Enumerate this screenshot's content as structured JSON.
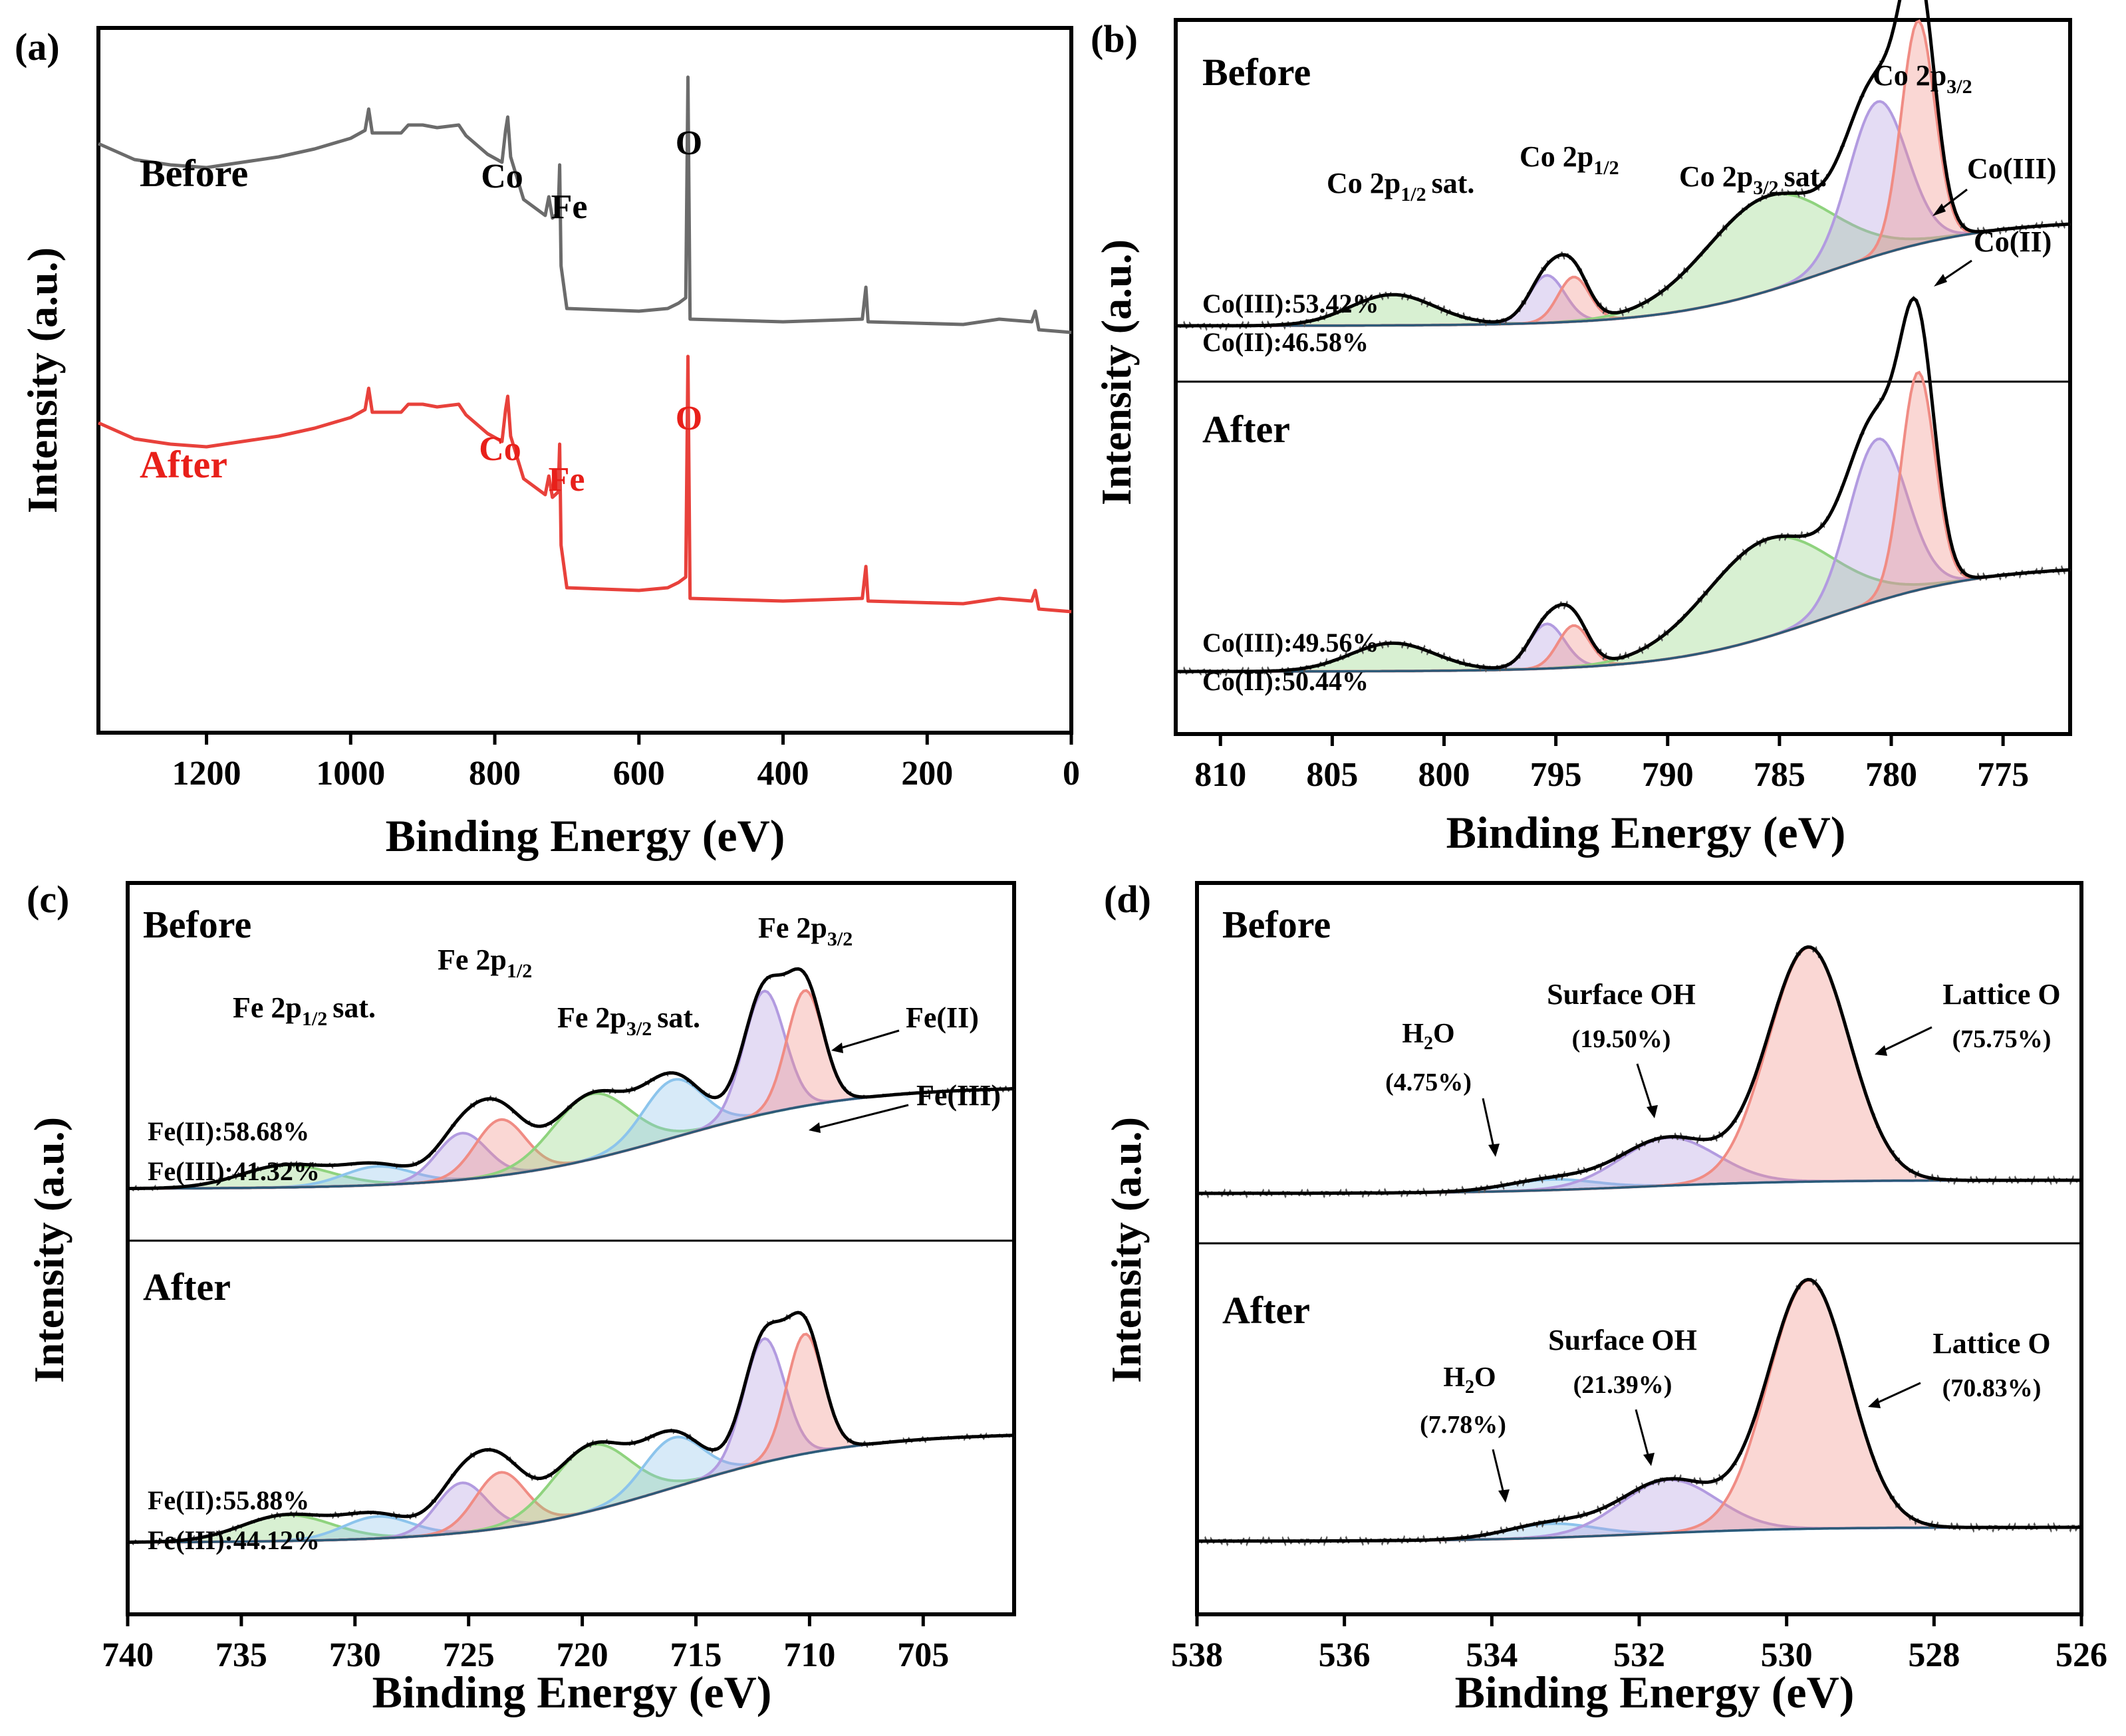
{
  "chart_data": [
    {
      "panel": "(a)",
      "type": "line",
      "xlabel": "Binding Energy (eV)",
      "ylabel": "Intensity (a.u.)",
      "xlim": [
        1350,
        0
      ],
      "xticks": [
        "1200",
        "1000",
        "800",
        "600",
        "400",
        "200",
        "0"
      ],
      "series": [
        {
          "name": "Before",
          "color": "#6b6b6b",
          "points": [
            [
              1350,
              0.42
            ],
            [
              1300,
              0.3
            ],
            [
              1250,
              0.26
            ],
            [
              1200,
              0.24
            ],
            [
              1100,
              0.32
            ],
            [
              1050,
              0.38
            ],
            [
              1000,
              0.46
            ],
            [
              980,
              0.52
            ],
            [
              975,
              0.68
            ],
            [
              970,
              0.5
            ],
            [
              930,
              0.5
            ],
            [
              920,
              0.56
            ],
            [
              900,
              0.56
            ],
            [
              880,
              0.54
            ],
            [
              850,
              0.56
            ],
            [
              840,
              0.48
            ],
            [
              810,
              0.34
            ],
            [
              790,
              0.28
            ],
            [
              785,
              0.52
            ],
            [
              782,
              0.62
            ],
            [
              778,
              0.32
            ],
            [
              760,
              0.0
            ],
            [
              730,
              -0.12
            ],
            [
              725,
              0.02
            ],
            [
              720,
              -0.14
            ],
            [
              712,
              -0.1
            ],
            [
              710,
              0.26
            ],
            [
              708,
              -0.5
            ],
            [
              700,
              -0.82
            ],
            [
              600,
              -0.84
            ],
            [
              560,
              -0.82
            ],
            [
              545,
              -0.78
            ],
            [
              535,
              -0.74
            ],
            [
              532,
              0.92
            ],
            [
              529,
              -0.9
            ],
            [
              400,
              -0.92
            ],
            [
              290,
              -0.9
            ],
            [
              285,
              -0.66
            ],
            [
              282,
              -0.92
            ],
            [
              150,
              -0.94
            ],
            [
              100,
              -0.9
            ],
            [
              55,
              -0.92
            ],
            [
              50,
              -0.84
            ],
            [
              45,
              -0.98
            ],
            [
              0,
              -1.0
            ]
          ],
          "peak_labels": [
            {
              "label": "Co",
              "x": 780
            },
            {
              "label": "Fe",
              "x": 710
            },
            {
              "label": "O",
              "x": 531
            }
          ]
        },
        {
          "name": "After",
          "color": "#e8413b",
          "points": [
            [
              1350,
              0.42
            ],
            [
              1300,
              0.3
            ],
            [
              1250,
              0.26
            ],
            [
              1200,
              0.24
            ],
            [
              1100,
              0.32
            ],
            [
              1050,
              0.38
            ],
            [
              1000,
              0.46
            ],
            [
              980,
              0.52
            ],
            [
              975,
              0.68
            ],
            [
              970,
              0.5
            ],
            [
              930,
              0.5
            ],
            [
              920,
              0.56
            ],
            [
              900,
              0.56
            ],
            [
              880,
              0.54
            ],
            [
              850,
              0.56
            ],
            [
              840,
              0.48
            ],
            [
              810,
              0.34
            ],
            [
              790,
              0.28
            ],
            [
              785,
              0.52
            ],
            [
              782,
              0.62
            ],
            [
              778,
              0.32
            ],
            [
              760,
              0.0
            ],
            [
              730,
              -0.12
            ],
            [
              725,
              0.02
            ],
            [
              720,
              -0.14
            ],
            [
              712,
              -0.1
            ],
            [
              710,
              0.26
            ],
            [
              708,
              -0.5
            ],
            [
              700,
              -0.82
            ],
            [
              600,
              -0.84
            ],
            [
              560,
              -0.82
            ],
            [
              545,
              -0.78
            ],
            [
              535,
              -0.74
            ],
            [
              532,
              0.92
            ],
            [
              529,
              -0.9
            ],
            [
              400,
              -0.92
            ],
            [
              290,
              -0.9
            ],
            [
              285,
              -0.66
            ],
            [
              282,
              -0.92
            ],
            [
              150,
              -0.94
            ],
            [
              100,
              -0.9
            ],
            [
              55,
              -0.92
            ],
            [
              50,
              -0.84
            ],
            [
              45,
              -0.98
            ],
            [
              0,
              -1.0
            ]
          ],
          "peak_labels": [
            {
              "label": "Co",
              "x": 780
            },
            {
              "label": "Fe",
              "x": 710
            },
            {
              "label": "O",
              "x": 531
            }
          ]
        }
      ]
    },
    {
      "panel": "(b)",
      "type": "line",
      "subtype": "xps-deconvolution",
      "xlabel": "Binding Energy (eV)",
      "ylabel": "Intensity (a.u.)",
      "xlim": [
        812,
        772
      ],
      "xticks": [
        "810",
        "805",
        "800",
        "795",
        "790",
        "785",
        "780",
        "775"
      ],
      "subpanels": [
        {
          "name": "Before",
          "composition": [
            "Co(III):53.42%",
            "Co(II):46.58%"
          ],
          "background": [
            0.0,
            0.38
          ],
          "peaks": [
            {
              "center": 802.3,
              "height": 0.11,
              "width": 1.9,
              "color": "#8fd37e"
            },
            {
              "center": 795.4,
              "height": 0.17,
              "width": 0.8,
              "color": "#b29be0"
            },
            {
              "center": 794.2,
              "height": 0.16,
              "width": 0.7,
              "color": "#f08c84"
            },
            {
              "center": 785.5,
              "height": 0.34,
              "width": 2.8,
              "color": "#8fd37e"
            },
            {
              "center": 780.6,
              "height": 0.55,
              "width": 1.3,
              "color": "#b29be0"
            },
            {
              "center": 778.8,
              "height": 0.8,
              "width": 0.75,
              "color": "#f08c84"
            }
          ],
          "annotations": [
            "Co 2p1/2 sat.",
            "Co 2p1/2",
            "Co 2p3/2 sat.",
            "Co 2p3/2",
            "Co(III)",
            "Co(II)"
          ]
        },
        {
          "name": "After",
          "composition": [
            "Co(III):49.56%",
            "Co(II):50.44%"
          ],
          "background": [
            0.0,
            0.38
          ],
          "peaks": [
            {
              "center": 802.3,
              "height": 0.1,
              "width": 1.9,
              "color": "#8fd37e"
            },
            {
              "center": 795.4,
              "height": 0.16,
              "width": 0.8,
              "color": "#b29be0"
            },
            {
              "center": 794.2,
              "height": 0.15,
              "width": 0.7,
              "color": "#f08c84"
            },
            {
              "center": 785.5,
              "height": 0.35,
              "width": 2.8,
              "color": "#8fd37e"
            },
            {
              "center": 780.6,
              "height": 0.58,
              "width": 1.3,
              "color": "#b29be0"
            },
            {
              "center": 778.8,
              "height": 0.78,
              "width": 0.75,
              "color": "#f08c84"
            }
          ],
          "annotations": []
        }
      ]
    },
    {
      "panel": "(c)",
      "type": "line",
      "subtype": "xps-deconvolution",
      "xlabel": "Binding Energy (eV)",
      "ylabel": "Intensity (a.u.)",
      "xlim": [
        740,
        701
      ],
      "xticks": [
        "740",
        "735",
        "730",
        "725",
        "720",
        "715",
        "710",
        "705"
      ],
      "subpanels": [
        {
          "name": "Before",
          "composition": [
            "Fe(II):58.68%",
            "Fe(III):41.32%"
          ],
          "background": [
            0.0,
            0.55
          ],
          "peaks": [
            {
              "center": 733.0,
              "height": 0.12,
              "width": 2.0,
              "color": "#8fd37e"
            },
            {
              "center": 729.0,
              "height": 0.1,
              "width": 1.5,
              "color": "#8cc4ec"
            },
            {
              "center": 725.3,
              "height": 0.25,
              "width": 1.1,
              "color": "#b29be0"
            },
            {
              "center": 723.6,
              "height": 0.3,
              "width": 1.1,
              "color": "#f08c84"
            },
            {
              "center": 719.6,
              "height": 0.35,
              "width": 1.7,
              "color": "#8fd37e"
            },
            {
              "center": 716.0,
              "height": 0.31,
              "width": 1.3,
              "color": "#8cc4ec"
            },
            {
              "center": 712.0,
              "height": 0.66,
              "width": 0.9,
              "color": "#b29be0"
            },
            {
              "center": 710.2,
              "height": 0.62,
              "width": 0.8,
              "color": "#f08c84"
            }
          ],
          "annotations": [
            "Fe 2p1/2 sat.",
            "Fe 2p1/2",
            "Fe 2p3/2 sat.",
            "Fe 2p3/2",
            "Fe(II)",
            "Fe(III)"
          ]
        },
        {
          "name": "After",
          "composition": [
            "Fe(II):55.88%",
            "Fe(III):44.12%"
          ],
          "background": [
            0.0,
            0.55
          ],
          "peaks": [
            {
              "center": 733.0,
              "height": 0.13,
              "width": 2.0,
              "color": "#8fd37e"
            },
            {
              "center": 729.0,
              "height": 0.11,
              "width": 1.5,
              "color": "#8cc4ec"
            },
            {
              "center": 725.3,
              "height": 0.25,
              "width": 1.1,
              "color": "#b29be0"
            },
            {
              "center": 723.6,
              "height": 0.28,
              "width": 1.1,
              "color": "#f08c84"
            },
            {
              "center": 719.6,
              "height": 0.33,
              "width": 1.7,
              "color": "#8fd37e"
            },
            {
              "center": 716.0,
              "height": 0.25,
              "width": 1.3,
              "color": "#8cc4ec"
            },
            {
              "center": 712.0,
              "height": 0.62,
              "width": 0.9,
              "color": "#b29be0"
            },
            {
              "center": 710.2,
              "height": 0.6,
              "width": 0.8,
              "color": "#f08c84"
            }
          ],
          "annotations": []
        }
      ]
    },
    {
      "panel": "(d)",
      "type": "line",
      "subtype": "xps-deconvolution",
      "xlabel": "Binding Energy (eV)",
      "ylabel": "Intensity (a.u.)",
      "xlim": [
        538,
        526
      ],
      "xticks": [
        "538",
        "536",
        "534",
        "532",
        "530",
        "528",
        "526"
      ],
      "subpanels": [
        {
          "name": "Before",
          "composition": [],
          "background": [
            0.0,
            0.05
          ],
          "peaks": [
            {
              "center": 533.2,
              "height": 0.04,
              "width": 0.6,
              "color": "#8cc4ec"
            },
            {
              "center": 531.6,
              "height": 0.18,
              "width": 0.65,
              "color": "#b29be0"
            },
            {
              "center": 529.7,
              "height": 0.88,
              "width": 0.55,
              "color": "#f08c84"
            }
          ],
          "annotations": [
            {
              "name": "H2O",
              "percent": "(4.75%)"
            },
            {
              "name": "Surface OH",
              "percent": "(19.50%)"
            },
            {
              "name": "Lattice O",
              "percent": "(75.75%)"
            }
          ]
        },
        {
          "name": "After",
          "composition": [],
          "background": [
            0.0,
            0.05
          ],
          "peaks": [
            {
              "center": 533.2,
              "height": 0.05,
              "width": 0.6,
              "color": "#8cc4ec"
            },
            {
              "center": 531.6,
              "height": 0.19,
              "width": 0.65,
              "color": "#b29be0"
            },
            {
              "center": 529.7,
              "height": 0.89,
              "width": 0.55,
              "color": "#f08c84"
            }
          ],
          "annotations": [
            {
              "name": "H2O",
              "percent": "(7.78%)"
            },
            {
              "name": "Surface OH",
              "percent": "(21.39%)"
            },
            {
              "name": "Lattice O",
              "percent": "(70.83%)"
            }
          ]
        }
      ]
    }
  ],
  "panel_labels": {
    "a": "(a)",
    "b": "(b)",
    "c": "(c)",
    "d": "(d)"
  },
  "axis_text": {
    "xlabel": "Binding Energy (eV)",
    "ylabel": "Intensity (a.u.)"
  },
  "condition_labels": {
    "before": "Before",
    "after": "After"
  },
  "element_labels": {
    "co": "Co",
    "fe": "Fe",
    "o": "O"
  },
  "co_labels": {
    "sat_half": "Co 2p",
    "main_half": "Co 2p",
    "sat_three_half": "Co 2p",
    "main_three_half": "Co 2p",
    "sub_half": "1/2",
    "sub_three_half": "3/2",
    "sat": "sat.",
    "co3": "Co(III)",
    "co2": "Co(II)"
  },
  "fe_labels": {
    "prefix": "Fe 2p",
    "sub_half": "1/2",
    "sub_three_half": "3/2",
    "sat": "sat.",
    "fe2": "Fe(II)",
    "fe3": "Fe(III)"
  },
  "o_labels": {
    "h2o_h": "H",
    "h2o_sub": "2",
    "h2o_o": "O"
  },
  "colors": {
    "before_survey": "#6b6b6b",
    "after_survey": "#e8413b",
    "after_text": "#e8201a"
  }
}
